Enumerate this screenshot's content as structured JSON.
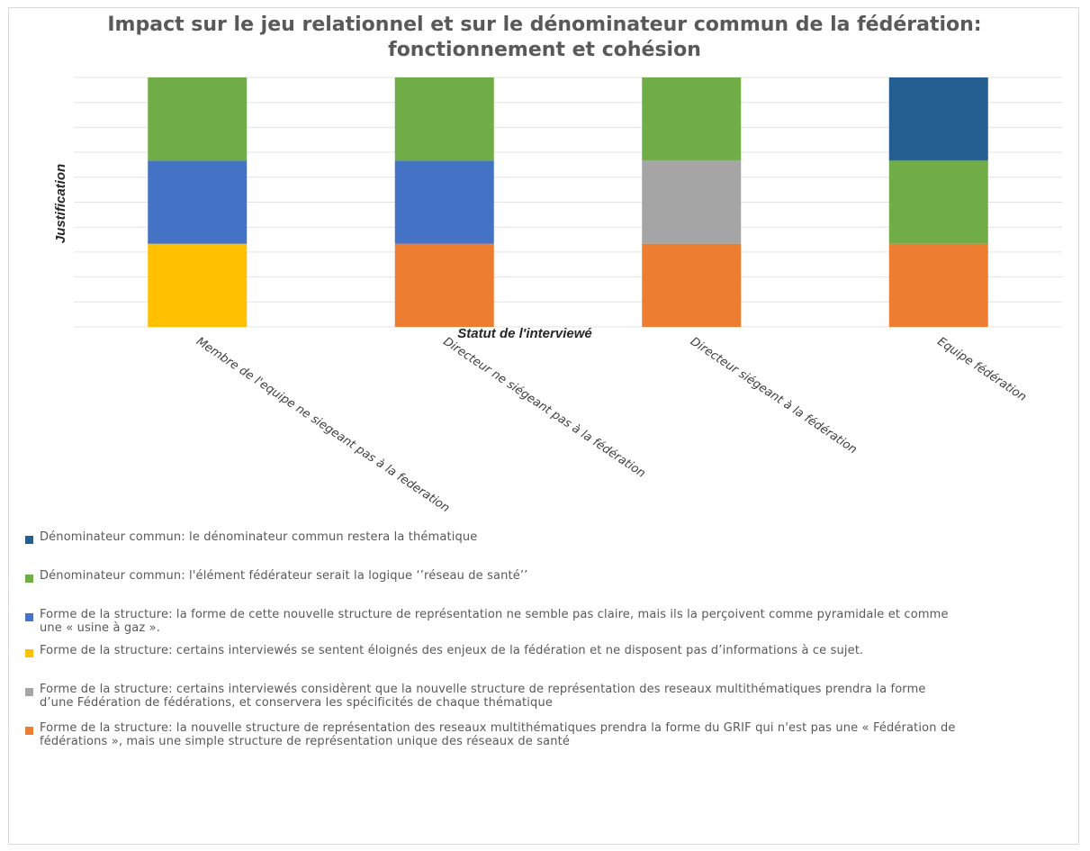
{
  "chart_data": {
    "type": "bar",
    "stacked": true,
    "title": "Impact sur le jeu relationnel et sur le dénominateur commun de la fédération: fonctionnement et cohésion",
    "xlabel": "Statut de l'interviewé",
    "ylabel": "Justification",
    "categories": [
      "Membre de l'equipe ne siegeant pas à la federation",
      "Directeur ne siégeant pas à la fédération",
      "Directeur siégeant à la fédération",
      "Equipe fédération"
    ],
    "grid": true,
    "legend_position": "bottom",
    "series": [
      {
        "name": "Forme de la structure: la nouvelle structure de représentation des reseaux multithématiques prendra la forme du GRIF qui n'est pas une « Fédération de fédérations », mais une simple structure de représentation unique des réseaux de santé",
        "color": "#ED7D31",
        "values": [
          0,
          1,
          1,
          1
        ]
      },
      {
        "name": "Forme de la structure: certains interviewés se sentent éloignés des enjeux de la fédération et ne disposent pas d’informations à ce sujet.",
        "color": "#FFC000",
        "values": [
          1,
          0,
          0,
          0
        ]
      },
      {
        "name": "Forme de la structure: la forme de cette nouvelle structure de représentation ne semble pas claire, mais ils la perçoivent comme  pyramidale et comme une « usine à gaz ».",
        "color": "#4472C4",
        "values": [
          1,
          1,
          0,
          0
        ]
      },
      {
        "name": "Forme de la structure: certains interviewés considèrent que la nouvelle structure de représentation des reseaux multithématiques prendra la forme d’une Fédération de fédérations, et  conservera les spécificités de chaque thématique",
        "color": "#A5A5A5",
        "values": [
          0,
          0,
          1,
          0
        ]
      },
      {
        "name": "Dénominateur commun: l'élément fédérateur serait la logique ‘’réseau de santé’’",
        "color": "#70AD47",
        "values": [
          1,
          1,
          1,
          1
        ]
      },
      {
        "name": "Dénominateur commun: le dénominateur commun restera la thématique",
        "color": "#255E91",
        "values": [
          0,
          0,
          0,
          1
        ]
      }
    ],
    "legend_order": [
      5,
      4,
      2,
      1,
      3,
      0
    ]
  }
}
